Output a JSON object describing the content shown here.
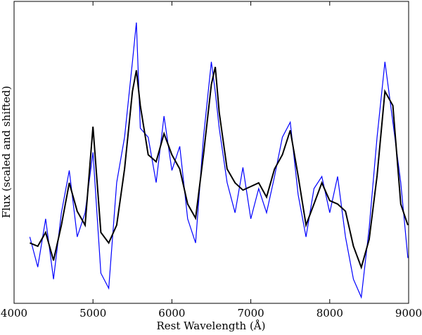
{
  "chart_data": {
    "type": "line",
    "xlabel": "Rest Wavelength (Å)",
    "ylabel": "Flux (scaled and shifted)",
    "x": [
      4200,
      4300,
      4400,
      4500,
      4600,
      4700,
      4800,
      4900,
      5000,
      5100,
      5200,
      5300,
      5400,
      5500,
      5550,
      5600,
      5700,
      5800,
      5900,
      6000,
      6100,
      6200,
      6300,
      6400,
      6500,
      6550,
      6600,
      6700,
      6800,
      6900,
      7000,
      7100,
      7200,
      7300,
      7400,
      7500,
      7600,
      7700,
      7800,
      7900,
      8000,
      8100,
      8200,
      8300,
      8400,
      8500,
      8600,
      8700,
      8800,
      8900,
      8990
    ],
    "series": [
      {
        "color": "#0000ff",
        "values": [
          22,
          12,
          28,
          8,
          30,
          44,
          22,
          30,
          50,
          10,
          5,
          40,
          55,
          80,
          93,
          58,
          55,
          40,
          62,
          44,
          52,
          28,
          20,
          55,
          80,
          70,
          58,
          40,
          30,
          45,
          28,
          38,
          30,
          42,
          55,
          60,
          36,
          22,
          38,
          42,
          30,
          42,
          22,
          8,
          2,
          25,
          55,
          80,
          60,
          40,
          15
        ]
      },
      {
        "color": "#000000",
        "values": [
          20.0,
          18.9,
          23.5,
          14.2,
          25.9,
          39.9,
          30.5,
          25.9,
          58.5,
          23.5,
          20.0,
          25.9,
          44.5,
          70.2,
          77.2,
          65.5,
          49.2,
          46.9,
          56.2,
          49.2,
          44.5,
          32.9,
          28.2,
          49.2,
          72.5,
          78.3,
          63.2,
          44.5,
          39.9,
          37.5,
          38.7,
          39.9,
          35.2,
          44.5,
          49.2,
          57.3,
          42.2,
          25.9,
          32.9,
          39.9,
          34.0,
          32.9,
          30.5,
          18.9,
          11.9,
          21.2,
          42.2,
          70.2,
          65.5,
          32.9,
          25.9
        ]
      }
    ],
    "xlim": [
      4000,
      9000
    ],
    "ylim": [
      0,
      100
    ],
    "xticks": [
      4000,
      5000,
      6000,
      7000,
      8000,
      9000
    ]
  }
}
